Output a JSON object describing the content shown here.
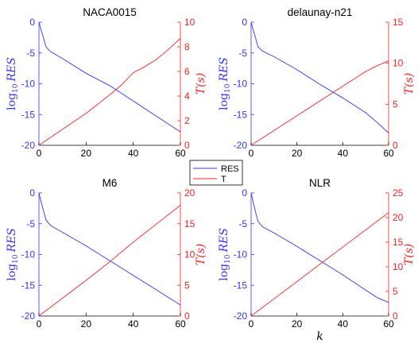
{
  "colors": {
    "res": "#3333ff",
    "t": "#ff2020",
    "axis": "#000000"
  },
  "legend": {
    "entries": [
      "RES",
      "T"
    ],
    "placement": "center"
  },
  "chart_data": [
    {
      "type": "line",
      "title": "NACA0015",
      "xlabel": "",
      "ylabel": "log10 RES",
      "ylabel_right": "T(s)",
      "xlim": [
        0,
        60
      ],
      "ylim": [
        -20,
        0
      ],
      "ylim_right": [
        0,
        10
      ],
      "xticks": [
        0,
        20,
        40,
        60
      ],
      "yticks": [
        -20,
        -15,
        -10,
        -5,
        0
      ],
      "yticks_right": [
        0,
        2,
        4,
        6,
        8,
        10
      ],
      "series": [
        {
          "name": "RES",
          "axis": "left",
          "x": [
            0,
            1,
            2,
            3,
            5,
            10,
            20,
            30,
            40,
            50,
            60
          ],
          "y": [
            0,
            -1.4,
            -2.6,
            -4,
            -4.8,
            -5.9,
            -8.3,
            -10.3,
            -12.8,
            -15.3,
            -17.8
          ]
        },
        {
          "name": "T",
          "axis": "right",
          "x": [
            0,
            10,
            20,
            30,
            35,
            40,
            45,
            50,
            55,
            60
          ],
          "y": [
            0,
            1.3,
            2.6,
            4.1,
            4.9,
            5.9,
            6.4,
            7.0,
            7.8,
            8.7
          ]
        }
      ]
    },
    {
      "type": "line",
      "title": "delaunay-n21",
      "xlabel": "",
      "ylabel": "log10 RES",
      "ylabel_right": "T(s)",
      "xlim": [
        0,
        60
      ],
      "ylim": [
        -20,
        0
      ],
      "ylim_right": [
        0,
        15
      ],
      "xticks": [
        0,
        20,
        40,
        60
      ],
      "yticks": [
        -20,
        -15,
        -10,
        -5,
        0
      ],
      "yticks_right": [
        0,
        5,
        10,
        15
      ],
      "series": [
        {
          "name": "RES",
          "axis": "left",
          "x": [
            0,
            1,
            2,
            3,
            5,
            10,
            20,
            30,
            40,
            50,
            55,
            60
          ],
          "y": [
            0,
            -1.4,
            -2.6,
            -4,
            -4.7,
            -5.6,
            -7.7,
            -10.1,
            -12.3,
            -14.7,
            -16.3,
            -18
          ]
        },
        {
          "name": "T",
          "axis": "right",
          "x": [
            0,
            10,
            20,
            30,
            40,
            50,
            55,
            60
          ],
          "y": [
            0,
            1.8,
            3.6,
            5.4,
            7.2,
            9.0,
            9.7,
            10.3
          ]
        }
      ]
    },
    {
      "type": "line",
      "title": "M6",
      "xlabel": "",
      "ylabel": "log10 RES",
      "ylabel_right": "T(s)",
      "xlim": [
        0,
        60
      ],
      "ylim": [
        -20,
        0
      ],
      "ylim_right": [
        0,
        20
      ],
      "xticks": [
        0,
        20,
        40,
        60
      ],
      "yticks": [
        -20,
        -15,
        -10,
        -5,
        0
      ],
      "yticks_right": [
        0,
        5,
        10,
        15,
        20
      ],
      "series": [
        {
          "name": "RES",
          "axis": "left",
          "x": [
            0,
            1,
            2,
            3,
            5,
            10,
            20,
            30,
            40,
            50,
            60
          ],
          "y": [
            0,
            -1.6,
            -3,
            -4.4,
            -5.3,
            -6.4,
            -8.6,
            -11,
            -13.4,
            -15.8,
            -18.2
          ]
        },
        {
          "name": "T",
          "axis": "right",
          "x": [
            0,
            10,
            20,
            30,
            40,
            50,
            60
          ],
          "y": [
            0,
            2.9,
            5.8,
            8.8,
            12.0,
            15.0,
            18.0
          ]
        }
      ]
    },
    {
      "type": "line",
      "title": "NLR",
      "xlabel": "k",
      "ylabel": "log10 RES",
      "ylabel_right": "T(s)",
      "xlim": [
        0,
        60
      ],
      "ylim": [
        -20,
        0
      ],
      "ylim_right": [
        0,
        25
      ],
      "xticks": [
        0,
        20,
        40,
        60
      ],
      "yticks": [
        -20,
        -15,
        -10,
        -5,
        0
      ],
      "yticks_right": [
        0,
        5,
        10,
        15,
        20,
        25
      ],
      "series": [
        {
          "name": "RES",
          "axis": "left",
          "x": [
            0,
            1,
            2,
            3,
            5,
            10,
            20,
            30,
            40,
            50,
            55,
            60
          ],
          "y": [
            0,
            -1.7,
            -3.2,
            -4.6,
            -5.5,
            -6.5,
            -8.7,
            -11,
            -13.3,
            -15.8,
            -17,
            -17.8
          ]
        },
        {
          "name": "T",
          "axis": "right",
          "x": [
            0,
            10,
            20,
            30,
            40,
            50,
            60
          ],
          "y": [
            0,
            3.5,
            7.0,
            10.5,
            14.0,
            17.5,
            21.0
          ]
        }
      ]
    }
  ]
}
